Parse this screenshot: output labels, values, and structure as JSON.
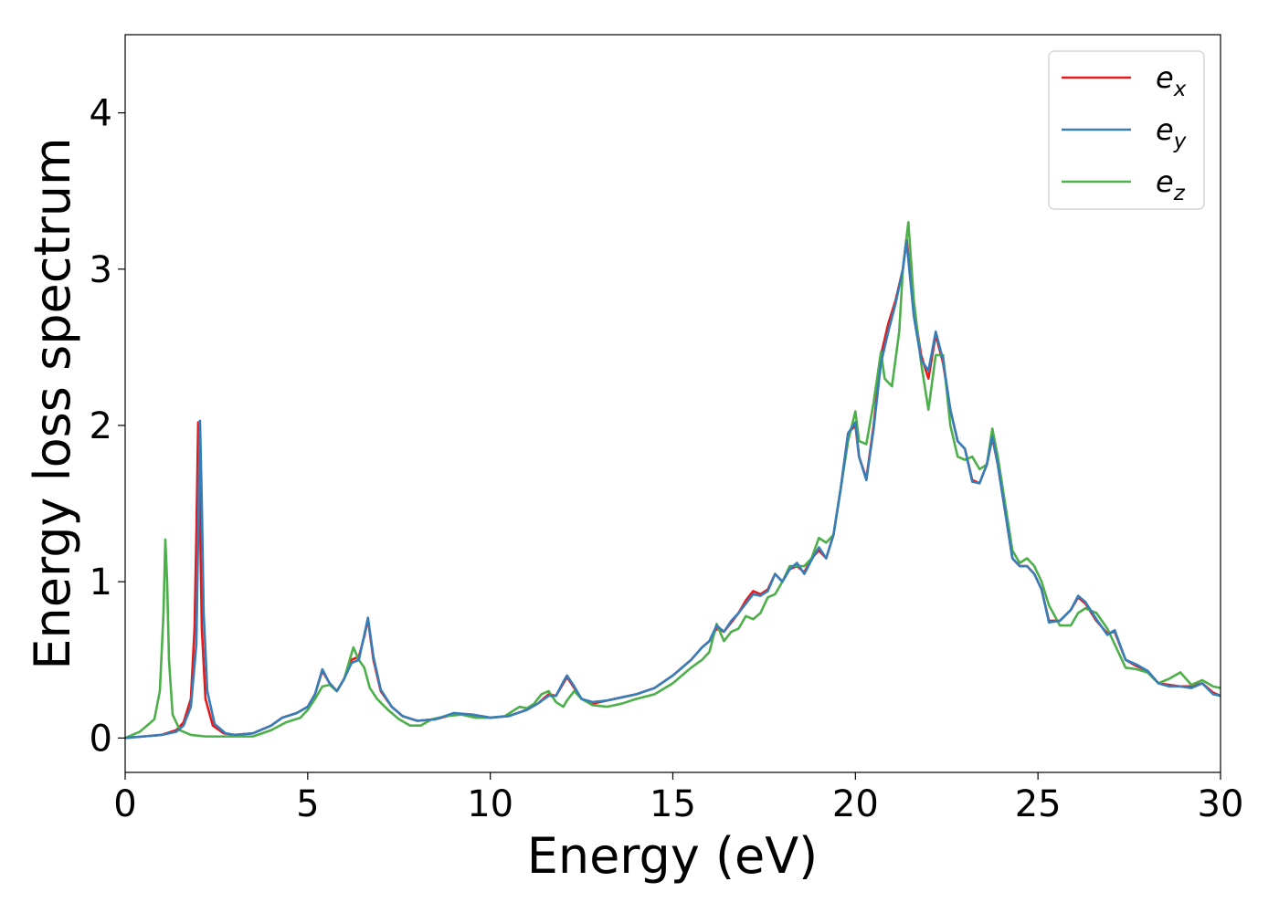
{
  "chart_data": {
    "type": "line",
    "xlabel": "Energy (eV)",
    "ylabel": "Energy loss spectrum",
    "xlim": [
      0,
      30
    ],
    "ylim": [
      -0.22,
      4.5
    ],
    "xticks": [
      0,
      5,
      10,
      15,
      20,
      25,
      30
    ],
    "yticks": [
      0,
      1,
      2,
      3,
      4
    ],
    "grid": false,
    "legend": "top-right",
    "series": [
      {
        "name": "e",
        "subscript": "x",
        "color": "#e41a1c",
        "x": [
          0,
          0.5,
          1.0,
          1.4,
          1.6,
          1.8,
          1.9,
          1.95,
          2.0,
          2.05,
          2.1,
          2.2,
          2.4,
          2.7,
          3.0,
          3.5,
          4.0,
          4.3,
          4.7,
          5.0,
          5.2,
          5.4,
          5.6,
          5.8,
          6.0,
          6.2,
          6.4,
          6.55,
          6.65,
          6.8,
          7.0,
          7.3,
          7.6,
          8.0,
          8.5,
          9.0,
          9.5,
          10.0,
          10.5,
          11.0,
          11.3,
          11.6,
          11.8,
          12.0,
          12.1,
          12.3,
          12.5,
          12.8,
          13.2,
          13.6,
          14.0,
          14.5,
          15.0,
          15.5,
          15.8,
          16.0,
          16.2,
          16.4,
          16.6,
          16.8,
          17.0,
          17.2,
          17.4,
          17.6,
          17.8,
          18.0,
          18.2,
          18.4,
          18.6,
          18.8,
          19.0,
          19.2,
          19.4,
          19.6,
          19.8,
          20.0,
          20.1,
          20.3,
          20.5,
          20.7,
          20.9,
          21.1,
          21.3,
          21.4,
          21.6,
          21.8,
          22.0,
          22.2,
          22.4,
          22.6,
          22.8,
          23.0,
          23.2,
          23.4,
          23.6,
          23.75,
          23.9,
          24.1,
          24.3,
          24.5,
          24.7,
          24.9,
          25.1,
          25.3,
          25.6,
          25.9,
          26.1,
          26.3,
          26.6,
          26.9,
          27.1,
          27.4,
          27.7,
          28.0,
          28.3,
          28.6,
          28.9,
          29.2,
          29.5,
          29.8,
          30.0
        ],
        "y": [
          0,
          0.01,
          0.02,
          0.05,
          0.1,
          0.25,
          0.7,
          1.3,
          2.02,
          1.4,
          0.7,
          0.25,
          0.08,
          0.03,
          0.02,
          0.03,
          0.08,
          0.13,
          0.16,
          0.2,
          0.28,
          0.43,
          0.35,
          0.3,
          0.38,
          0.5,
          0.52,
          0.65,
          0.76,
          0.5,
          0.3,
          0.2,
          0.14,
          0.11,
          0.12,
          0.15,
          0.15,
          0.13,
          0.14,
          0.18,
          0.22,
          0.28,
          0.27,
          0.35,
          0.39,
          0.32,
          0.25,
          0.22,
          0.24,
          0.26,
          0.28,
          0.32,
          0.4,
          0.5,
          0.58,
          0.62,
          0.7,
          0.68,
          0.74,
          0.8,
          0.88,
          0.94,
          0.92,
          0.95,
          1.05,
          1.0,
          1.08,
          1.1,
          1.06,
          1.15,
          1.2,
          1.15,
          1.3,
          1.6,
          1.95,
          2.0,
          1.8,
          1.66,
          2.0,
          2.45,
          2.65,
          2.8,
          3.0,
          3.2,
          2.75,
          2.45,
          2.3,
          2.58,
          2.4,
          2.1,
          1.9,
          1.85,
          1.65,
          1.63,
          1.75,
          1.92,
          1.75,
          1.45,
          1.15,
          1.1,
          1.1,
          1.05,
          0.95,
          0.75,
          0.75,
          0.82,
          0.9,
          0.86,
          0.75,
          0.67,
          0.68,
          0.5,
          0.46,
          0.43,
          0.35,
          0.34,
          0.33,
          0.33,
          0.35,
          0.29,
          0.27
        ]
      },
      {
        "name": "e",
        "subscript": "y",
        "color": "#377eb8",
        "x": [
          0,
          0.5,
          1.0,
          1.4,
          1.6,
          1.8,
          1.95,
          2.0,
          2.05,
          2.1,
          2.15,
          2.25,
          2.45,
          2.75,
          3.0,
          3.5,
          4.0,
          4.3,
          4.7,
          5.0,
          5.2,
          5.4,
          5.6,
          5.8,
          6.0,
          6.2,
          6.4,
          6.55,
          6.65,
          6.8,
          7.0,
          7.3,
          7.6,
          8.0,
          8.5,
          9.0,
          9.5,
          10.0,
          10.5,
          11.0,
          11.3,
          11.6,
          11.8,
          12.0,
          12.1,
          12.3,
          12.5,
          12.8,
          13.2,
          13.6,
          14.0,
          14.5,
          15.0,
          15.5,
          15.8,
          16.0,
          16.2,
          16.4,
          16.6,
          16.8,
          17.0,
          17.2,
          17.4,
          17.6,
          17.8,
          18.0,
          18.2,
          18.4,
          18.6,
          18.8,
          19.0,
          19.2,
          19.4,
          19.6,
          19.8,
          20.0,
          20.1,
          20.3,
          20.5,
          20.7,
          20.9,
          21.1,
          21.3,
          21.4,
          21.6,
          21.8,
          22.0,
          22.2,
          22.4,
          22.6,
          22.8,
          23.0,
          23.2,
          23.4,
          23.6,
          23.75,
          23.9,
          24.1,
          24.3,
          24.5,
          24.7,
          24.9,
          25.1,
          25.3,
          25.6,
          25.9,
          26.1,
          26.3,
          26.6,
          26.9,
          27.1,
          27.4,
          27.7,
          28.0,
          28.3,
          28.6,
          28.9,
          29.2,
          29.5,
          29.8,
          30.0
        ],
        "y": [
          0,
          0.01,
          0.02,
          0.04,
          0.08,
          0.2,
          0.6,
          1.3,
          2.03,
          1.5,
          0.8,
          0.3,
          0.09,
          0.03,
          0.02,
          0.03,
          0.08,
          0.13,
          0.16,
          0.2,
          0.28,
          0.44,
          0.35,
          0.3,
          0.38,
          0.48,
          0.5,
          0.66,
          0.77,
          0.52,
          0.31,
          0.2,
          0.14,
          0.11,
          0.12,
          0.16,
          0.15,
          0.13,
          0.14,
          0.18,
          0.22,
          0.27,
          0.27,
          0.36,
          0.4,
          0.33,
          0.25,
          0.23,
          0.24,
          0.26,
          0.28,
          0.32,
          0.4,
          0.5,
          0.58,
          0.62,
          0.72,
          0.68,
          0.75,
          0.8,
          0.86,
          0.92,
          0.91,
          0.94,
          1.05,
          1.0,
          1.08,
          1.12,
          1.05,
          1.14,
          1.22,
          1.15,
          1.3,
          1.6,
          1.95,
          2.02,
          1.8,
          1.65,
          1.98,
          2.4,
          2.6,
          2.78,
          3.0,
          3.18,
          2.7,
          2.42,
          2.35,
          2.6,
          2.42,
          2.1,
          1.9,
          1.85,
          1.64,
          1.63,
          1.75,
          1.93,
          1.75,
          1.45,
          1.15,
          1.1,
          1.1,
          1.05,
          0.95,
          0.74,
          0.75,
          0.82,
          0.91,
          0.87,
          0.76,
          0.66,
          0.69,
          0.5,
          0.47,
          0.43,
          0.35,
          0.33,
          0.33,
          0.32,
          0.35,
          0.28,
          0.27
        ]
      },
      {
        "name": "e",
        "subscript": "z",
        "color": "#4daf4a",
        "x": [
          0,
          0.4,
          0.8,
          0.95,
          1.05,
          1.1,
          1.15,
          1.2,
          1.3,
          1.5,
          1.8,
          2.2,
          2.8,
          3.5,
          4.0,
          4.4,
          4.8,
          5.0,
          5.2,
          5.4,
          5.6,
          5.8,
          6.0,
          6.15,
          6.25,
          6.4,
          6.55,
          6.7,
          6.9,
          7.2,
          7.5,
          7.8,
          8.1,
          8.4,
          8.8,
          9.2,
          9.6,
          10.0,
          10.4,
          10.8,
          11.0,
          11.2,
          11.4,
          11.6,
          11.8,
          12.0,
          12.1,
          12.3,
          12.5,
          12.8,
          13.2,
          13.6,
          14.0,
          14.5,
          15.0,
          15.5,
          15.8,
          16.0,
          16.2,
          16.4,
          16.6,
          16.8,
          17.0,
          17.2,
          17.4,
          17.6,
          17.8,
          18.0,
          18.2,
          18.4,
          18.6,
          18.8,
          19.0,
          19.2,
          19.4,
          19.6,
          19.8,
          20.0,
          20.1,
          20.3,
          20.5,
          20.7,
          20.8,
          21.0,
          21.2,
          21.3,
          21.45,
          21.6,
          21.8,
          22.0,
          22.2,
          22.4,
          22.6,
          22.8,
          23.0,
          23.2,
          23.4,
          23.6,
          23.75,
          23.9,
          24.1,
          24.3,
          24.5,
          24.7,
          24.9,
          25.1,
          25.3,
          25.6,
          25.9,
          26.1,
          26.3,
          26.6,
          26.9,
          27.1,
          27.4,
          27.7,
          28.0,
          28.3,
          28.6,
          28.9,
          29.2,
          29.5,
          29.8,
          30.0
        ],
        "y": [
          0,
          0.04,
          0.12,
          0.3,
          0.8,
          1.27,
          1.0,
          0.5,
          0.15,
          0.05,
          0.02,
          0.01,
          0.01,
          0.01,
          0.05,
          0.1,
          0.13,
          0.18,
          0.25,
          0.33,
          0.34,
          0.3,
          0.38,
          0.5,
          0.58,
          0.5,
          0.45,
          0.32,
          0.25,
          0.18,
          0.12,
          0.08,
          0.08,
          0.12,
          0.14,
          0.15,
          0.13,
          0.13,
          0.14,
          0.2,
          0.19,
          0.22,
          0.28,
          0.3,
          0.23,
          0.2,
          0.24,
          0.3,
          0.25,
          0.21,
          0.2,
          0.22,
          0.25,
          0.28,
          0.35,
          0.45,
          0.5,
          0.55,
          0.73,
          0.62,
          0.68,
          0.7,
          0.78,
          0.76,
          0.8,
          0.9,
          0.92,
          1.0,
          1.1,
          1.1,
          1.1,
          1.15,
          1.28,
          1.25,
          1.3,
          1.6,
          1.9,
          2.09,
          1.9,
          1.88,
          2.15,
          2.47,
          2.3,
          2.25,
          2.6,
          3.0,
          3.3,
          2.8,
          2.4,
          2.1,
          2.45,
          2.45,
          2.0,
          1.8,
          1.78,
          1.8,
          1.72,
          1.75,
          1.98,
          1.8,
          1.5,
          1.2,
          1.12,
          1.15,
          1.1,
          1.0,
          0.85,
          0.72,
          0.72,
          0.8,
          0.83,
          0.8,
          0.7,
          0.6,
          0.45,
          0.44,
          0.42,
          0.35,
          0.38,
          0.42,
          0.34,
          0.37,
          0.33,
          0.32
        ]
      }
    ]
  }
}
